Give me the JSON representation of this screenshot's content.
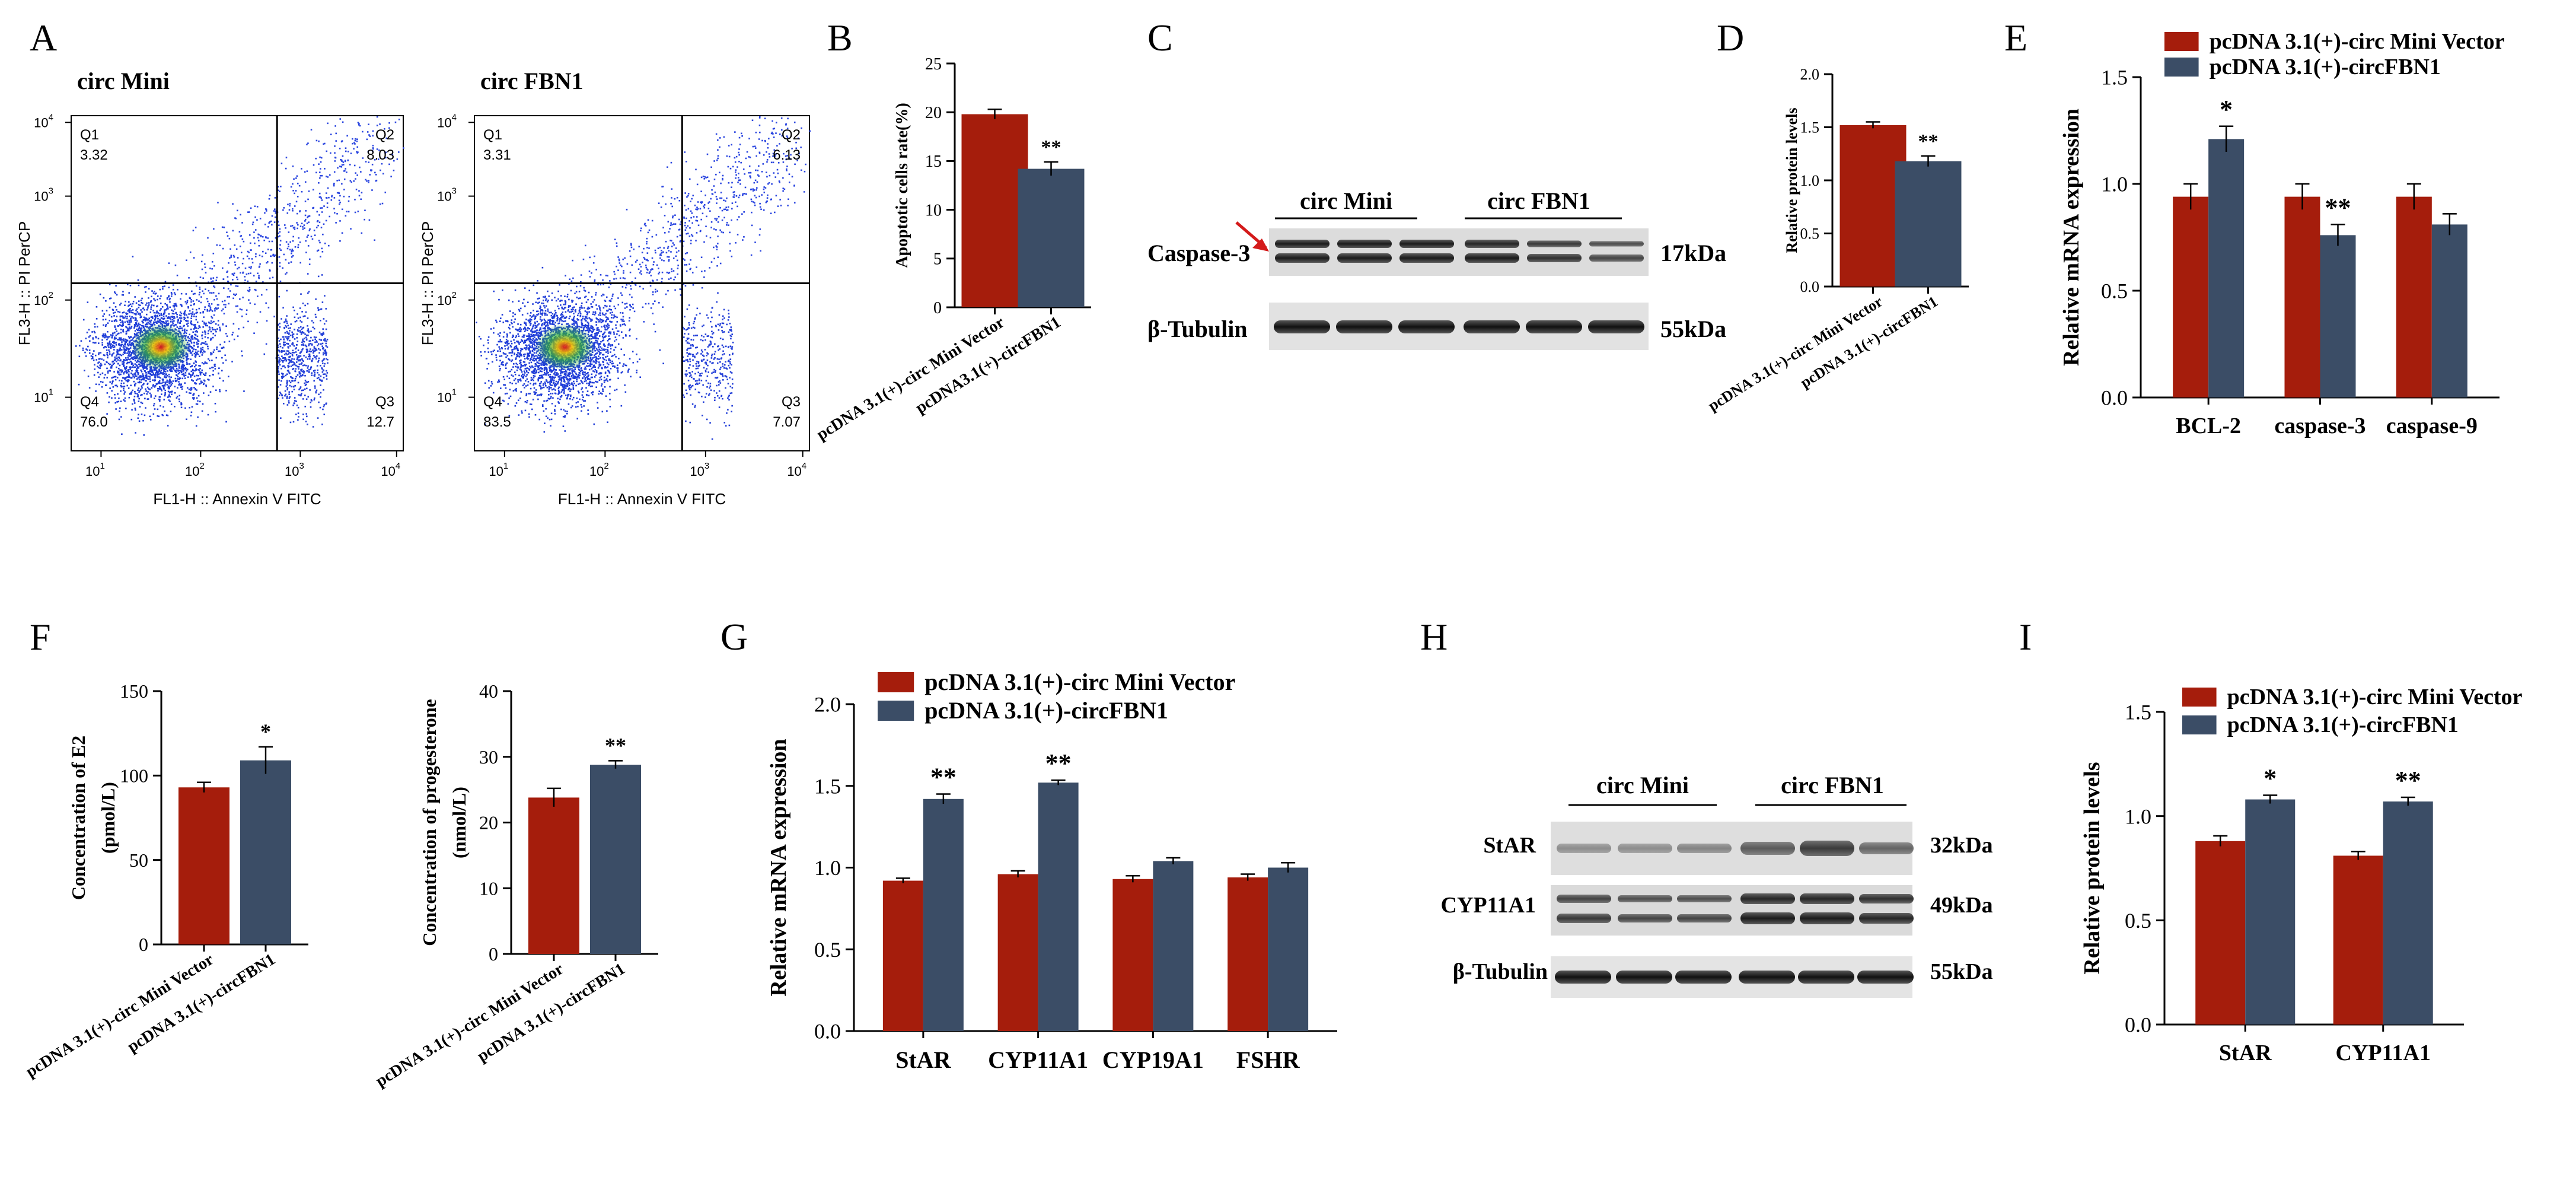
{
  "panel_letters": {
    "A": "A",
    "B": "B",
    "C": "C",
    "D": "D",
    "E": "E",
    "F": "F",
    "G": "G",
    "H": "H",
    "I": "I"
  },
  "colors": {
    "red": "#a51d0c",
    "blue": "#3b4d66",
    "blot_dark": "#2a2a2a",
    "arrow": "#d41a1a"
  },
  "chart_data": [
    {
      "id": "A1",
      "type": "scatter",
      "title": "circ Mini",
      "xlabel": "FL1-H :: Annexin V FITC",
      "ylabel": "FL3-H :: PI PerCP",
      "axis": "log",
      "ticks": [
        "10^1",
        "10^2",
        "10^3",
        "10^4"
      ],
      "quadrants": [
        {
          "name": "Q1",
          "value": "3.32"
        },
        {
          "name": "Q2",
          "value": "8.03"
        },
        {
          "name": "Q3",
          "value": "12.7"
        },
        {
          "name": "Q4",
          "value": "76.0"
        }
      ]
    },
    {
      "id": "A2",
      "type": "scatter",
      "title": "circ FBN1",
      "xlabel": "FL1-H :: Annexin V FITC",
      "ylabel": "FL3-H :: PI PerCP",
      "axis": "log",
      "ticks": [
        "10^1",
        "10^2",
        "10^3",
        "10^4"
      ],
      "quadrants": [
        {
          "name": "Q1",
          "value": "3.31"
        },
        {
          "name": "Q2",
          "value": "6.13"
        },
        {
          "name": "Q3",
          "value": "7.07"
        },
        {
          "name": "Q4",
          "value": "83.5"
        }
      ]
    },
    {
      "id": "B",
      "type": "bar",
      "ylabel": "Apoptotic cells rate(%)",
      "ylim": [
        0,
        25
      ],
      "yticks": [
        0,
        5,
        10,
        15,
        20,
        25
      ],
      "categories": [
        "pcDNA 3.1(+)-circ Mini Vector",
        "pcDNA3.1(+)-circFBN1"
      ],
      "values": [
        19.8,
        14.2
      ],
      "errors": [
        0.5,
        0.7
      ],
      "sig": [
        "",
        "**"
      ]
    },
    {
      "id": "D",
      "type": "bar",
      "ylabel": "Relative protein levels",
      "ylim": [
        0,
        2
      ],
      "yticks": [
        "0.0",
        "0.5",
        "1.0",
        "1.5",
        "2.0"
      ],
      "categories": [
        "pcDNA 3.1(+)-circ Mini Vector",
        "pcDNA 3.1(+)-circFBN1"
      ],
      "values": [
        1.52,
        1.18
      ],
      "errors": [
        0.03,
        0.05
      ],
      "sig": [
        "",
        "**"
      ]
    },
    {
      "id": "E",
      "type": "bar",
      "ylabel": "Relative mRNA expression",
      "ylim": [
        0,
        1.5
      ],
      "yticks": [
        "0.0",
        "0.5",
        "1.0",
        "1.5"
      ],
      "legend": [
        "pcDNA 3.1(+)-circ Mini Vector",
        "pcDNA 3.1(+)-circFBN1"
      ],
      "categories": [
        "BCL-2",
        "caspase-3",
        "caspase-9"
      ],
      "series": [
        {
          "name": "pcDNA 3.1(+)-circ Mini Vector",
          "values": [
            0.94,
            0.94,
            0.94
          ],
          "errors": [
            0.06,
            0.06,
            0.06
          ]
        },
        {
          "name": "pcDNA 3.1(+)-circFBN1",
          "values": [
            1.21,
            0.76,
            0.81
          ],
          "errors": [
            0.06,
            0.05,
            0.05
          ]
        }
      ],
      "sig": [
        [
          "",
          "*"
        ],
        [
          "",
          "**"
        ],
        [
          "",
          ""
        ]
      ]
    },
    {
      "id": "F1",
      "type": "bar",
      "ylabel": [
        "Concentration of E2",
        "(pmol/L)"
      ],
      "ylim": [
        0,
        150
      ],
      "yticks": [
        0,
        50,
        100,
        150
      ],
      "categories": [
        "pcDNA 3.1(+)-circ Mini Vector",
        "pcDNA 3.1(+)-circFBN1"
      ],
      "values": [
        93,
        109
      ],
      "errors": [
        3,
        8
      ],
      "sig": [
        "",
        "*"
      ]
    },
    {
      "id": "F2",
      "type": "bar",
      "ylabel": [
        "Concentration of progesterone",
        "(nmol/L)"
      ],
      "ylim": [
        0,
        40
      ],
      "yticks": [
        0,
        10,
        20,
        30,
        40
      ],
      "categories": [
        "pcDNA 3.1(+)-circ Mini Vector",
        "pcDNA 3.1(+)-circFBN1"
      ],
      "values": [
        23.8,
        28.8
      ],
      "errors": [
        1.4,
        0.6
      ],
      "sig": [
        "",
        "**"
      ]
    },
    {
      "id": "G",
      "type": "bar",
      "ylabel": "Relative mRNA expression",
      "ylim": [
        0,
        2
      ],
      "yticks": [
        "0.0",
        "0.5",
        "1.0",
        "1.5",
        "2.0"
      ],
      "legend": [
        "pcDNA 3.1(+)-circ Mini Vector",
        "pcDNA 3.1(+)-circFBN1"
      ],
      "categories": [
        "StAR",
        "CYP11A1",
        "CYP19A1",
        "FSHR"
      ],
      "series": [
        {
          "name": "pcDNA 3.1(+)-circ Mini Vector",
          "values": [
            0.92,
            0.96,
            0.93,
            0.94
          ],
          "errors": [
            0.015,
            0.02,
            0.02,
            0.02
          ]
        },
        {
          "name": "pcDNA 3.1(+)-circFBN1",
          "values": [
            1.42,
            1.52,
            1.04,
            1.0
          ],
          "errors": [
            0.03,
            0.015,
            0.02,
            0.03
          ]
        }
      ],
      "sig": [
        [
          "",
          "**"
        ],
        [
          "",
          "**"
        ],
        [
          "",
          ""
        ],
        [
          "",
          ""
        ]
      ]
    },
    {
      "id": "I",
      "type": "bar",
      "ylabel": "Relative  protein levels",
      "ylim": [
        0,
        1.5
      ],
      "yticks": [
        "0.0",
        "0.5",
        "1.0",
        "1.5"
      ],
      "legend": [
        "pcDNA 3.1(+)-circ Mini Vector",
        "pcDNA 3.1(+)-circFBN1"
      ],
      "categories": [
        "StAR",
        "CYP11A1"
      ],
      "series": [
        {
          "name": "pcDNA 3.1(+)-circ Mini Vector",
          "values": [
            0.88,
            0.81
          ],
          "errors": [
            0.025,
            0.02
          ]
        },
        {
          "name": "pcDNA 3.1(+)-circFBN1",
          "values": [
            1.08,
            1.07
          ],
          "errors": [
            0.02,
            0.02
          ]
        }
      ],
      "sig": [
        [
          "",
          "*"
        ],
        [
          "",
          "**"
        ]
      ]
    }
  ],
  "blot_C": {
    "group1": "circ Mini",
    "group2": "circ FBN1",
    "rows": [
      {
        "label": "Caspase-3",
        "kda": "17kDa"
      },
      {
        "label": "β-Tubulin",
        "kda": "55kDa"
      }
    ]
  },
  "blot_H": {
    "group1": "circ Mini",
    "group2": "circ FBN1",
    "rows": [
      {
        "label": "StAR",
        "kda": "32kDa"
      },
      {
        "label": "CYP11A1",
        "kda": "49kDa"
      },
      {
        "label": "β-Tubulin",
        "kda": "55kDa"
      }
    ]
  }
}
